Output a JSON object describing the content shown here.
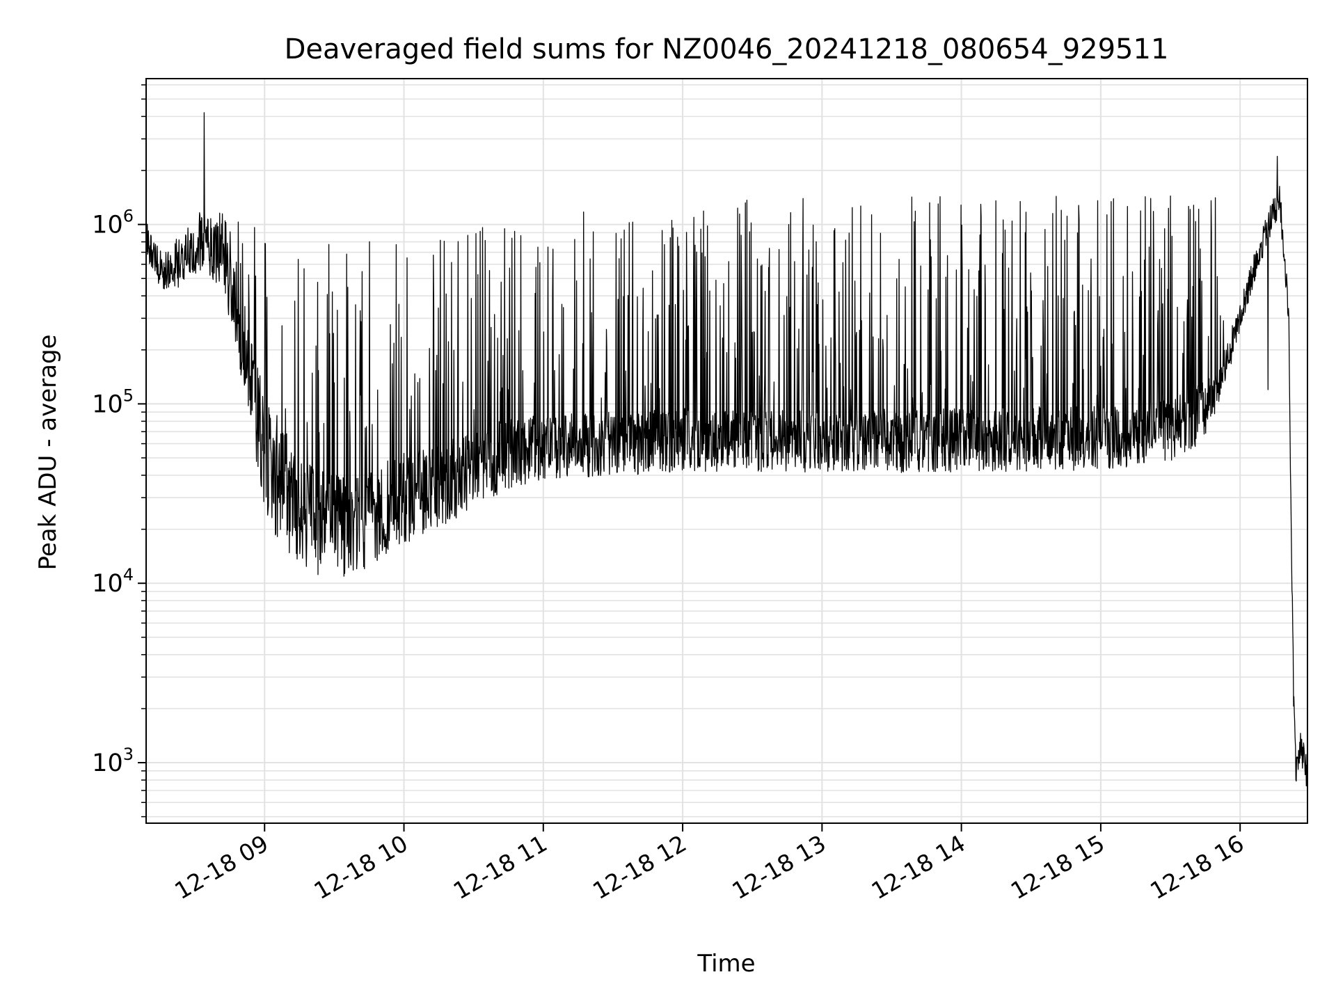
{
  "chart_data": {
    "type": "line",
    "title": "Deaveraged field sums for NZ0046_20241218_080654_929511",
    "xlabel": "Time",
    "ylabel": "Peak ADU - average",
    "yscale": "log",
    "ylim": [
      460,
      6500000
    ],
    "xlim": [
      "2024-12-18 08:09",
      "2024-12-18 16:29"
    ],
    "grid": true,
    "x_ticks": [
      {
        "value": "2024-12-18 09:00",
        "label": "12-18 09"
      },
      {
        "value": "2024-12-18 10:00",
        "label": "12-18 10"
      },
      {
        "value": "2024-12-18 11:00",
        "label": "12-18 11"
      },
      {
        "value": "2024-12-18 12:00",
        "label": "12-18 12"
      },
      {
        "value": "2024-12-18 13:00",
        "label": "12-18 13"
      },
      {
        "value": "2024-12-18 14:00",
        "label": "12-18 14"
      },
      {
        "value": "2024-12-18 15:00",
        "label": "12-18 15"
      },
      {
        "value": "2024-12-18 16:00",
        "label": "12-18 16"
      }
    ],
    "y_ticks": [
      {
        "value": 1000,
        "base": "10",
        "exp": "3"
      },
      {
        "value": 10000,
        "base": "10",
        "exp": "4"
      },
      {
        "value": 100000,
        "base": "10",
        "exp": "5"
      },
      {
        "value": 1000000,
        "base": "10",
        "exp": "6"
      }
    ],
    "series": [
      {
        "color": "#000000",
        "baseline": [
          {
            "x": "2024-12-18 08:09",
            "y": 800000
          },
          {
            "x": "2024-12-18 08:15",
            "y": 550000
          },
          {
            "x": "2024-12-18 08:24",
            "y": 600000
          },
          {
            "x": "2024-12-18 08:33",
            "y": 800000
          },
          {
            "x": "2024-12-18 08:42",
            "y": 650000
          },
          {
            "x": "2024-12-18 08:51",
            "y": 200000
          },
          {
            "x": "2024-12-18 09:00",
            "y": 50000
          },
          {
            "x": "2024-12-18 09:10",
            "y": 28000
          },
          {
            "x": "2024-12-18 09:20",
            "y": 22000
          },
          {
            "x": "2024-12-18 09:30",
            "y": 20000
          },
          {
            "x": "2024-12-18 09:40",
            "y": 20000
          },
          {
            "x": "2024-12-18 09:50",
            "y": 24000
          },
          {
            "x": "2024-12-18 10:00",
            "y": 28000
          },
          {
            "x": "2024-12-18 10:15",
            "y": 32000
          },
          {
            "x": "2024-12-18 10:30",
            "y": 42000
          },
          {
            "x": "2024-12-18 10:45",
            "y": 50000
          },
          {
            "x": "2024-12-18 11:00",
            "y": 55000
          },
          {
            "x": "2024-12-18 11:30",
            "y": 58000
          },
          {
            "x": "2024-12-18 12:00",
            "y": 60000
          },
          {
            "x": "2024-12-18 13:00",
            "y": 60000
          },
          {
            "x": "2024-12-18 14:00",
            "y": 60000
          },
          {
            "x": "2024-12-18 15:00",
            "y": 62000
          },
          {
            "x": "2024-12-18 15:30",
            "y": 68000
          },
          {
            "x": "2024-12-18 15:45",
            "y": 90000
          },
          {
            "x": "2024-12-18 15:53",
            "y": 150000
          },
          {
            "x": "2024-12-18 16:00",
            "y": 300000
          },
          {
            "x": "2024-12-18 16:05",
            "y": 500000
          },
          {
            "x": "2024-12-18 16:10",
            "y": 800000
          },
          {
            "x": "2024-12-18 16:15",
            "y": 1200000
          },
          {
            "x": "2024-12-18 16:17",
            "y": 1300000
          },
          {
            "x": "2024-12-18 16:19",
            "y": 700000
          },
          {
            "x": "2024-12-18 16:21",
            "y": 300000
          },
          {
            "x": "2024-12-18 16:22",
            "y": 20000
          },
          {
            "x": "2024-12-18 16:23",
            "y": 2500
          },
          {
            "x": "2024-12-18 16:24",
            "y": 900
          },
          {
            "x": "2024-12-18 16:26",
            "y": 1300
          },
          {
            "x": "2024-12-18 16:29",
            "y": 800
          }
        ],
        "spike_peak": [
          {
            "x": "2024-12-18 08:09",
            "y": 1000000
          },
          {
            "x": "2024-12-18 08:30",
            "y": 1100000
          },
          {
            "x": "2024-12-18 08:45",
            "y": 1100000
          },
          {
            "x": "2024-12-18 09:00",
            "y": 1000000
          },
          {
            "x": "2024-12-18 09:30",
            "y": 900000
          },
          {
            "x": "2024-12-18 10:00",
            "y": 800000
          },
          {
            "x": "2024-12-18 10:30",
            "y": 1000000
          },
          {
            "x": "2024-12-18 11:00",
            "y": 1300000
          },
          {
            "x": "2024-12-18 12:00",
            "y": 1400000
          },
          {
            "x": "2024-12-18 14:00",
            "y": 1450000
          },
          {
            "x": "2024-12-18 15:50",
            "y": 1450000
          }
        ],
        "noise_band": [
          {
            "x": "2024-12-18 08:09",
            "y": 0.1
          },
          {
            "x": "2024-12-18 08:45",
            "y": 0.2
          },
          {
            "x": "2024-12-18 09:05",
            "y": 0.35
          },
          {
            "x": "2024-12-18 09:40",
            "y": 0.28
          },
          {
            "x": "2024-12-18 10:30",
            "y": 0.22
          },
          {
            "x": "2024-12-18 11:00",
            "y": 0.18
          },
          {
            "x": "2024-12-18 15:40",
            "y": 0.18
          },
          {
            "x": "2024-12-18 16:00",
            "y": 0.08
          },
          {
            "x": "2024-12-18 16:29",
            "y": 0.1
          }
        ],
        "notable_points": [
          {
            "x": "2024-12-18 08:34",
            "y": 4200000
          },
          {
            "x": "2024-12-18 09:06",
            "y": 30000
          },
          {
            "x": "2024-12-18 09:52",
            "y": 16000
          },
          {
            "x": "2024-12-18 16:12",
            "y": 120000
          },
          {
            "x": "2024-12-18 16:16",
            "y": 2400000
          },
          {
            "x": "2024-12-18 16:21",
            "y": 300000
          },
          {
            "x": "2024-12-18 16:24",
            "y": 800
          },
          {
            "x": "2024-12-18 16:29",
            "y": 700
          }
        ]
      }
    ]
  }
}
